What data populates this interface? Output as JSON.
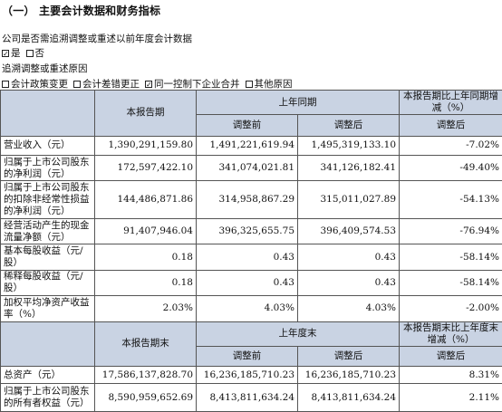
{
  "section_title": "（一）  主要会计数据和财务指标",
  "question": "公司是否需追溯调整或重述以前年度会计数据",
  "yes_no": [
    {
      "label": "是",
      "checked": true
    },
    {
      "label": "否",
      "checked": false
    }
  ],
  "reason_title": "追溯调整或重述原因",
  "reasons": [
    {
      "label": "会计政策变更",
      "checked": false
    },
    {
      "label": "会计差错更正",
      "checked": false
    },
    {
      "label": "同一控制下企业合并",
      "checked": true
    },
    {
      "label": "其他原因",
      "checked": false
    }
  ],
  "check_mark": "☑",
  "table1": {
    "head": {
      "current": "本报告期",
      "prior": "上年同期",
      "change": "本报告期比上年同期增减（%）",
      "before": "调整前",
      "after": "调整后",
      "change_sub": "调整后"
    },
    "rows": [
      {
        "label": "营业收入（元）",
        "current": "1,390,291,159.80",
        "before": "1,491,221,619.94",
        "after": "1,495,319,133.10",
        "change": "-7.02%"
      },
      {
        "label": "归属于上市公司股东的净利润（元）",
        "current": "172,597,422.10",
        "before": "341,074,021.81",
        "after": "341,126,182.41",
        "change": "-49.40%"
      },
      {
        "label": "归属于上市公司股东的扣除非经常性损益的净利润（元）",
        "current": "144,486,871.86",
        "before": "314,958,867.29",
        "after": "315,011,027.89",
        "change": "-54.13%"
      },
      {
        "label": "经营活动产生的现金流量净额（元）",
        "current": "91,407,946.04",
        "before": "396,325,655.75",
        "after": "396,409,574.53",
        "change": "-76.94%"
      },
      {
        "label": "基本每股收益（元/股）",
        "current": "0.18",
        "before": "0.43",
        "after": "0.43",
        "change": "-58.14%"
      },
      {
        "label": "稀释每股收益（元/股）",
        "current": "0.18",
        "before": "0.43",
        "after": "0.43",
        "change": "-58.14%"
      },
      {
        "label": "加权平均净资产收益率（%）",
        "current": "2.03%",
        "before": "4.03%",
        "after": "4.03%",
        "change": "-2.00%"
      }
    ]
  },
  "table2": {
    "head": {
      "current": "本报告期末",
      "prior": "上年度末",
      "change": "本报告期末比上年度末增减（%）",
      "before": "调整前",
      "after": "调整后",
      "change_sub": "调整后"
    },
    "rows": [
      {
        "label": "总资产（元）",
        "current": "17,586,137,828.70",
        "before": "16,236,185,710.23",
        "after": "16,236,185,710.23",
        "change": "8.31%"
      },
      {
        "label": "归属于上市公司股东的所有者权益（元）",
        "current": "8,590,959,652.69",
        "before": "8,413,811,634.24",
        "after": "8,413,811,634.24",
        "change": "2.11%"
      }
    ]
  }
}
